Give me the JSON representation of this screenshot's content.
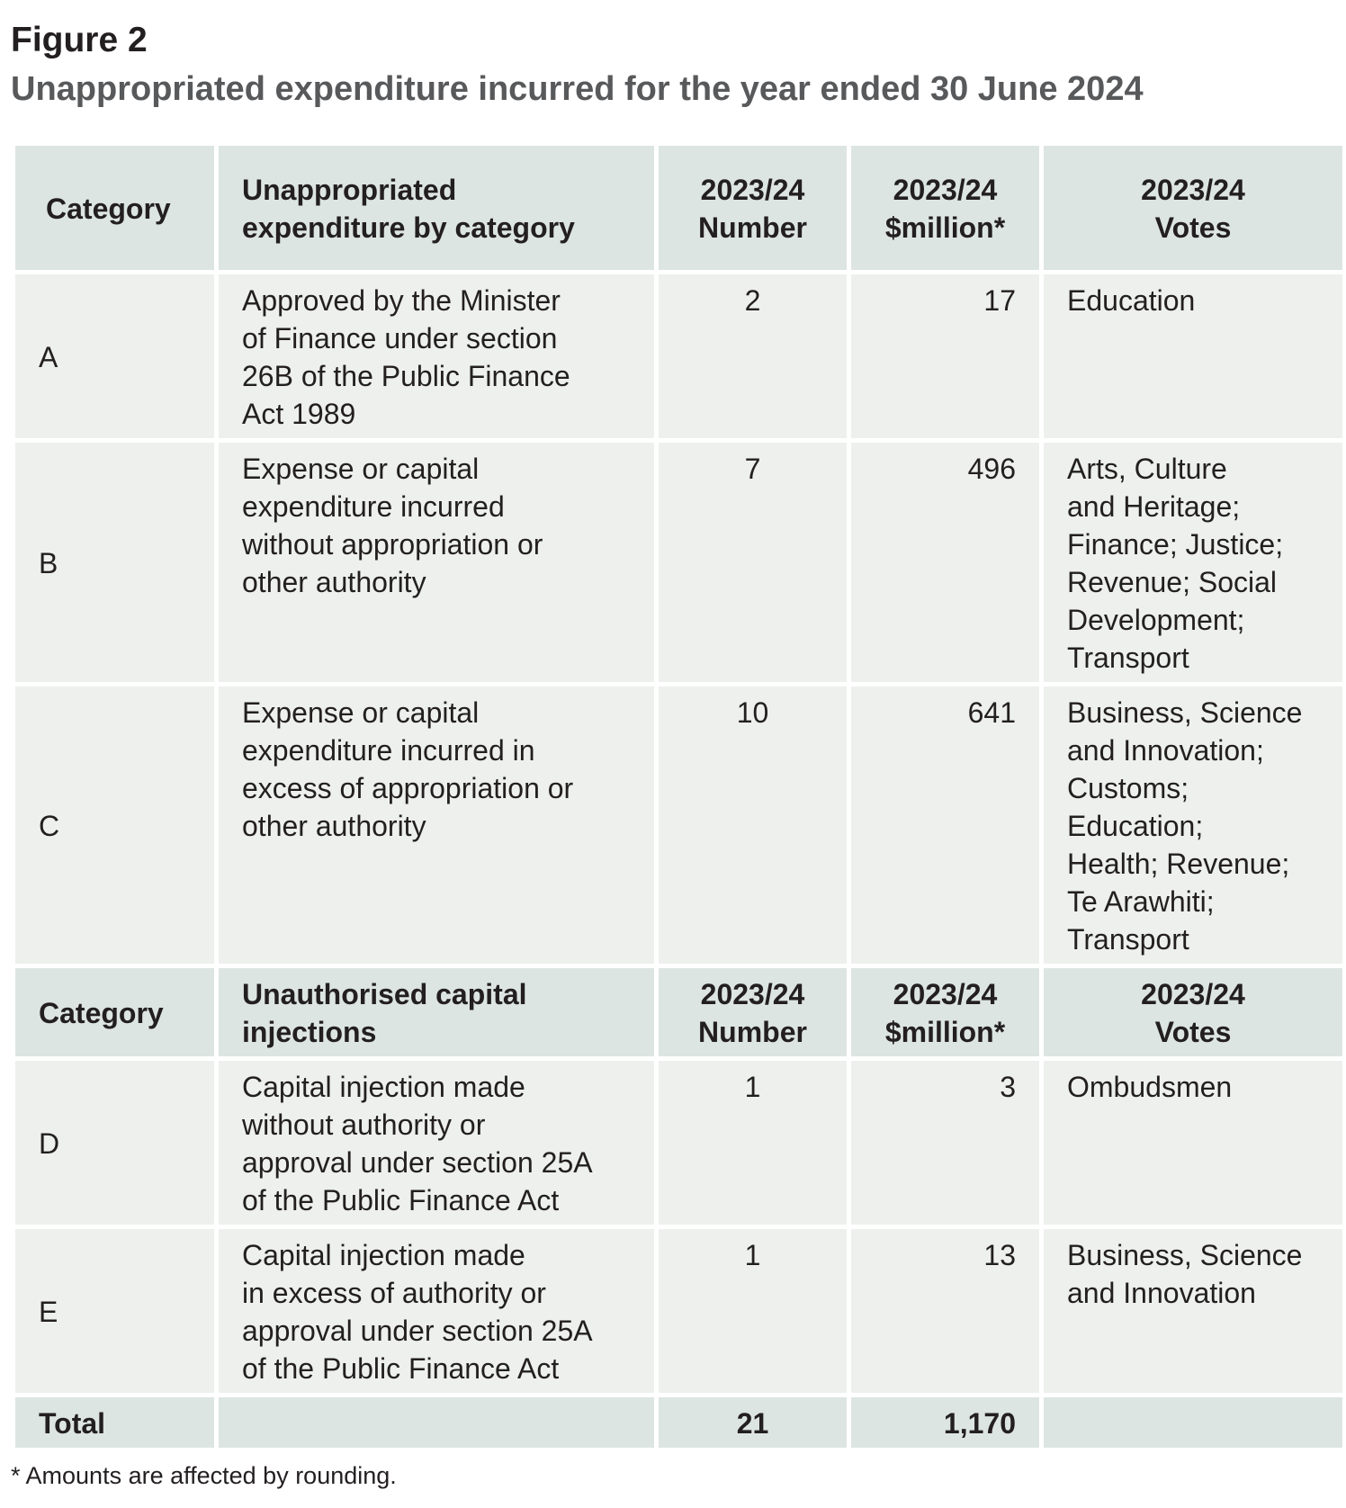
{
  "figure_label": "Figure 2",
  "figure_title": "Unappropriated expenditure incurred for the year ended 30 June 2024",
  "header": {
    "category": "Category",
    "description_lines": [
      "Unappropriated",
      "expenditure by category"
    ],
    "number_lines": [
      "2023/24",
      "Number"
    ],
    "million_lines": [
      "2023/24",
      "$million*"
    ],
    "votes_lines": [
      "2023/24",
      "Votes"
    ]
  },
  "rows_unappropriated": [
    {
      "category": "A",
      "description_lines": [
        "Approved by the Minister",
        "of Finance under section",
        "26B of the Public Finance",
        "Act 1989"
      ],
      "number": "2",
      "million": "17",
      "votes_lines": [
        "Education"
      ]
    },
    {
      "category": "B",
      "description_lines": [
        "Expense or capital",
        "expenditure incurred",
        "without appropriation or",
        "other authority"
      ],
      "number": "7",
      "million": "496",
      "votes_lines": [
        "Arts, Culture",
        "and Heritage;",
        "Finance; Justice;",
        "Revenue; Social",
        "Development;",
        "Transport"
      ]
    },
    {
      "category": "C",
      "description_lines": [
        "Expense or capital",
        "expenditure incurred in",
        "excess of appropriation or",
        "other authority"
      ],
      "number": "10",
      "million": "641",
      "votes_lines": [
        "Business, Science",
        "and Innovation;",
        "Customs;",
        "Education;",
        "Health; Revenue;",
        "Te Arawhiti;",
        "Transport"
      ]
    }
  ],
  "header2": {
    "category": "Category",
    "description_lines": [
      "Unauthorised capital",
      "injections"
    ],
    "number_lines": [
      "2023/24",
      "Number"
    ],
    "million_lines": [
      "2023/24",
      "$million*"
    ],
    "votes_lines": [
      "2023/24",
      "Votes"
    ]
  },
  "rows_capital": [
    {
      "category": "D",
      "description_lines": [
        "Capital injection made",
        "without authority or",
        "approval under section 25A",
        "of the Public Finance Act"
      ],
      "number": "1",
      "million": "3",
      "votes_lines": [
        "Ombudsmen"
      ]
    },
    {
      "category": "E",
      "description_lines": [
        "Capital injection made",
        "in excess of authority or",
        "approval under section 25A",
        "of the Public Finance Act"
      ],
      "number": "1",
      "million": "13",
      "votes_lines": [
        "Business, Science",
        "and Innovation"
      ]
    }
  ],
  "total": {
    "label": "Total",
    "number": "21",
    "million": "1,170"
  },
  "footnote": "* Amounts are affected by rounding.",
  "colors": {
    "header_bg": "#dde5e2",
    "row_bg": "#edf0ed",
    "title_color": "#58595b",
    "text_color": "#231f20"
  }
}
